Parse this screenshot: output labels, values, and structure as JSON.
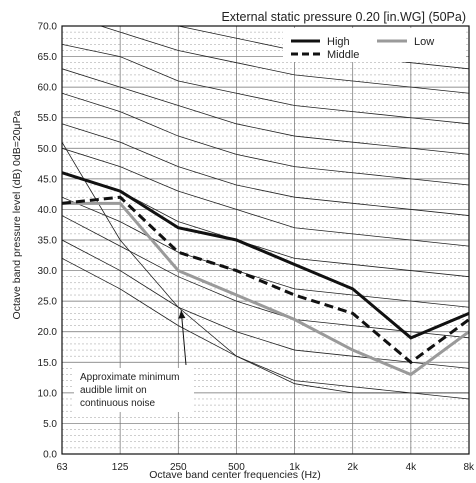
{
  "chart_data": {
    "type": "line",
    "title": "External static pressure 0.20 [in.WG] (50Pa)",
    "xlabel": "Octave band center frequencies (Hz)",
    "ylabel": "Octave band pressure level (dB) 0dB=20μPa",
    "categories": [
      "63",
      "125",
      "250",
      "500",
      "1k",
      "2k",
      "4k",
      "8k"
    ],
    "ylim": [
      0,
      70
    ],
    "yticks": [
      "0.0",
      "5.0",
      "10.0",
      "15.0",
      "20.0",
      "25.0",
      "30.0",
      "35.0",
      "40.0",
      "45.0",
      "50.0",
      "55.0",
      "60.0",
      "65.0",
      "70.0"
    ],
    "grid": true,
    "legend_position": "top-right",
    "series": [
      {
        "name": "High",
        "style": "solid",
        "color": "#111111",
        "values": [
          46,
          43,
          37,
          35,
          31,
          27,
          19,
          23
        ]
      },
      {
        "name": "Middle",
        "style": "dashed",
        "color": "#111111",
        "values": [
          41,
          42,
          33,
          30,
          26,
          23,
          15,
          22
        ]
      },
      {
        "name": "Low",
        "style": "solid",
        "color": "#9a9a9a",
        "values": [
          41,
          41,
          30,
          26,
          22,
          17,
          13,
          20
        ]
      }
    ],
    "nc_curves": [
      [
        76,
        73,
        70,
        68,
        66,
        65,
        64,
        63
      ],
      [
        72,
        69,
        66,
        64,
        62,
        61,
        60,
        59
      ],
      [
        67,
        65,
        61,
        59,
        57,
        56,
        55,
        54
      ],
      [
        63,
        60,
        57,
        54,
        52,
        51,
        50,
        49
      ],
      [
        59,
        56,
        52,
        49,
        47,
        46,
        45,
        44
      ],
      [
        54,
        51,
        47,
        44,
        42,
        41,
        40,
        39
      ],
      [
        50,
        47,
        43,
        40,
        37,
        36,
        35,
        34
      ],
      [
        46,
        43,
        38,
        35,
        32,
        31,
        30,
        29
      ],
      [
        42,
        38,
        33,
        30,
        27,
        26,
        25,
        24
      ],
      [
        39,
        34,
        29,
        25,
        22,
        21,
        20,
        19
      ],
      [
        35,
        30,
        24,
        20,
        17,
        16,
        15,
        14
      ],
      [
        32,
        27,
        21,
        16,
        12,
        11,
        10,
        9
      ]
    ],
    "audible_limit": [
      51,
      35,
      24,
      16,
      11.5,
      10,
      10,
      10
    ],
    "annotation": {
      "lines": [
        "Approximate minimum",
        "audible limit on",
        "continuous noise"
      ],
      "arrow_to": [
        500,
        24
      ]
    }
  }
}
